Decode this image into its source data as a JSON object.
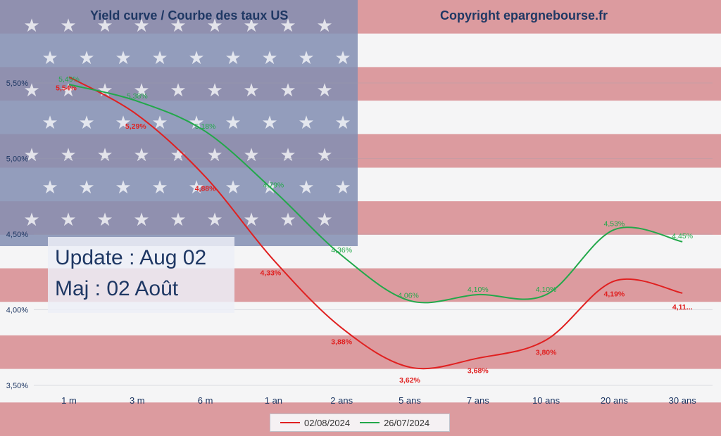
{
  "title_left": "Yield curve / Courbe des taux US",
  "title_right": "Copyright epargnebourse.fr",
  "update": {
    "line1": "Update : Aug 02",
    "line2": "Maj : 02 Août"
  },
  "colors": {
    "red_series": "#e02020",
    "green_series": "#22a84a",
    "axis_text": "#1f3864",
    "flag_red": "#c8585f",
    "flag_white": "#f2f2f4",
    "flag_blue": "#5f6f9c"
  },
  "chart_data": {
    "type": "line",
    "title": "Yield curve / Courbe des taux US",
    "categories": [
      "1 m",
      "3 m",
      "6 m",
      "1 an",
      "2 ans",
      "5 ans",
      "7 ans",
      "10 ans",
      "20 ans",
      "30 ans"
    ],
    "ylim": [
      3.5,
      5.75
    ],
    "yticks": [
      "3,50%",
      "4,00%",
      "4,50%",
      "5,00%",
      "5,50%"
    ],
    "ytick_values": [
      3.5,
      4.0,
      4.5,
      5.0,
      5.5
    ],
    "grid": true,
    "legend_position": "bottom",
    "series": [
      {
        "name": "02/08/2024",
        "color": "#e02020",
        "values": [
          5.54,
          5.29,
          4.88,
          4.33,
          3.88,
          3.62,
          3.68,
          3.8,
          4.19,
          4.11
        ],
        "labels": [
          "5,54%",
          "5,29%",
          "4,88%",
          "4,33%",
          "3,88%",
          "3,62%",
          "3,68%",
          "3,80%",
          "4,19%",
          "4,11..."
        ]
      },
      {
        "name": "26/07/2024",
        "color": "#22a84a",
        "values": [
          5.49,
          5.38,
          5.18,
          4.79,
          4.36,
          4.06,
          4.1,
          4.1,
          4.53,
          4.45
        ],
        "labels": [
          "5,49%",
          "5,38%",
          "5,18%",
          "4,79%",
          "4,36%",
          "4,06%",
          "4,10%",
          "4,10%",
          "4,53%",
          "4,45%"
        ]
      }
    ]
  }
}
